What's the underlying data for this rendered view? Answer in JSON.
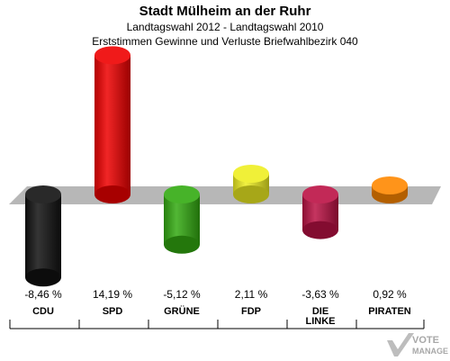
{
  "header": {
    "title": "Stadt Mülheim an der Ruhr",
    "subtitle": "Landtagswahl 2012 - Landtagswahl 2010",
    "subtitle2": "Erststimmen Gewinne und Verluste Briefwahlbezirk 040"
  },
  "chart_data": {
    "type": "bar",
    "title": "Stadt Mülheim an der Ruhr",
    "subtitle": "Landtagswahl 2012 - Landtagswahl 2010 / Erststimmen Gewinne und Verluste Briefwahlbezirk 040",
    "categories": [
      "CDU",
      "SPD",
      "GRÜNE",
      "FDP",
      "DIE LINKE",
      "PIRATEN"
    ],
    "values": [
      -8.46,
      14.19,
      -5.12,
      2.11,
      -3.63,
      0.92
    ],
    "value_labels": [
      "-8,46 %",
      "14,19 %",
      "-5,12 %",
      "2,11 %",
      "-3,63 %",
      "0,92 %"
    ],
    "colors": [
      "#111111",
      "#ee0000",
      "#33aa11",
      "#eeee22",
      "#bb1144",
      "#ff8800"
    ],
    "xlabel": "",
    "ylabel": "",
    "ylim": [
      -10,
      15
    ],
    "grid": false,
    "legend": "none"
  },
  "category_lines": [
    [
      "CDU"
    ],
    [
      "SPD"
    ],
    [
      "GRÜNE"
    ],
    [
      "FDP"
    ],
    [
      "DIE",
      "LINKE"
    ],
    [
      "PIRATEN"
    ]
  ],
  "logo": {
    "line1": "VOTE",
    "line2": "MANAGER"
  }
}
